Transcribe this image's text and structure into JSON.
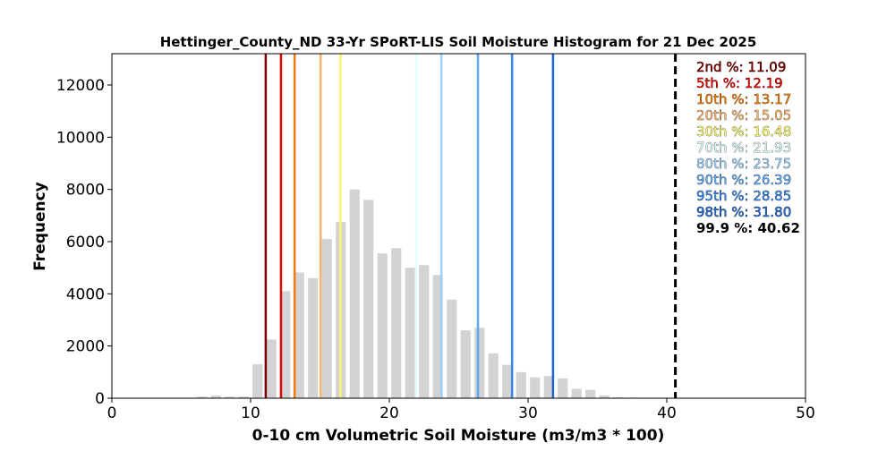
{
  "chart_data": {
    "type": "bar",
    "title": "Hettinger_County_ND 33-Yr SPoRT-LIS Soil Moisture Histogram for 21 Dec 2025",
    "xlabel": "0-10 cm Volumetric Soil Moisture (m3/m3 * 100)",
    "ylabel": "Frequency",
    "xlim": [
      0,
      50
    ],
    "ylim": [
      0,
      13200
    ],
    "xticks": [
      "0",
      "10",
      "20",
      "30",
      "40",
      "50"
    ],
    "yticks": [
      "0",
      "2000",
      "4000",
      "6000",
      "8000",
      "10000",
      "12000"
    ],
    "grid": false,
    "bar_color": "#d3d3d3",
    "bins": [
      6.5,
      7.5,
      8.5,
      9.5,
      10.5,
      11.5,
      12.5,
      13.5,
      14.5,
      15.5,
      16.5,
      17.5,
      18.5,
      19.5,
      20.5,
      21.5,
      22.5,
      23.5,
      24.5,
      25.5,
      26.5,
      27.5,
      28.5,
      29.5,
      30.5,
      31.5,
      32.5,
      33.5,
      34.5,
      35.5,
      36.5,
      37.5
    ],
    "values": [
      60,
      100,
      60,
      60,
      1300,
      2250,
      4100,
      4820,
      4600,
      6100,
      6750,
      8000,
      7600,
      5550,
      5750,
      5000,
      5100,
      4720,
      3780,
      2600,
      2700,
      1720,
      1280,
      1000,
      800,
      850,
      760,
      360,
      320,
      110,
      30,
      25
    ],
    "percentiles": [
      {
        "label": "2nd %: 11.09",
        "value": 11.09,
        "color": "#7f0000"
      },
      {
        "label": "5th %: 12.19",
        "value": 12.19,
        "color": "#e50000"
      },
      {
        "label": "10th %: 13.17",
        "value": 13.17,
        "color": "#ee7a00"
      },
      {
        "label": "20th %: 15.05",
        "value": 15.05,
        "color": "#f6b26b"
      },
      {
        "label": "30th %: 16.48",
        "value": 16.48,
        "color": "#f8f86a"
      },
      {
        "label": "70th %: 21.93",
        "value": 21.93,
        "color": "#e0ffff"
      },
      {
        "label": "80th %: 23.75",
        "value": 23.75,
        "color": "#9cd2f8"
      },
      {
        "label": "90th %: 26.39",
        "value": 26.39,
        "color": "#5fa8f0"
      },
      {
        "label": "95th %: 28.85",
        "value": 28.85,
        "color": "#3686e8"
      },
      {
        "label": "98th %: 31.80",
        "value": 31.8,
        "color": "#1f66d0"
      },
      {
        "label": "99.9 %: 40.62",
        "value": 40.62,
        "color": "#000000",
        "dashed": true
      }
    ],
    "legend_position": "top-right"
  }
}
